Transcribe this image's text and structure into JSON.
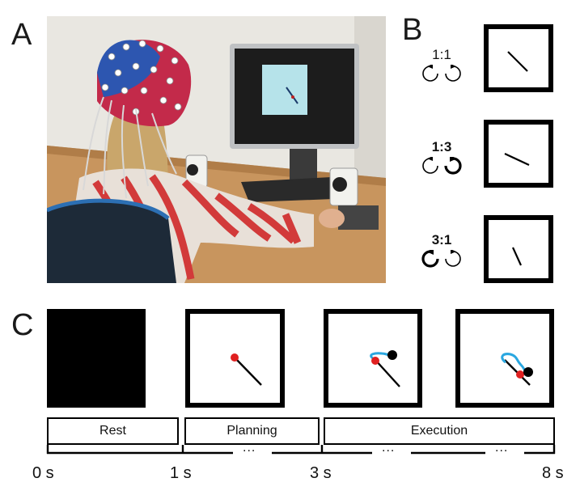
{
  "panels": {
    "a": "A",
    "b": "B",
    "c": "C"
  },
  "conditions": [
    {
      "ratio": "1:1",
      "bold": false
    },
    {
      "ratio": "1:3",
      "bold": true
    },
    {
      "ratio": "3:1",
      "bold": true
    }
  ],
  "phases": [
    "Rest",
    "Planning",
    "Execution"
  ],
  "times": [
    "0 s",
    "1 s",
    "3 s",
    "8 s"
  ],
  "ellipsis": "...",
  "colors": {
    "cursor_target": "#e02020",
    "endpoint": "#000000",
    "trajectory": "#2aa7e0",
    "screen": "#b6e3ea"
  },
  "icons": [
    "rotate-ccw-icon",
    "rotate-cw-icon"
  ]
}
